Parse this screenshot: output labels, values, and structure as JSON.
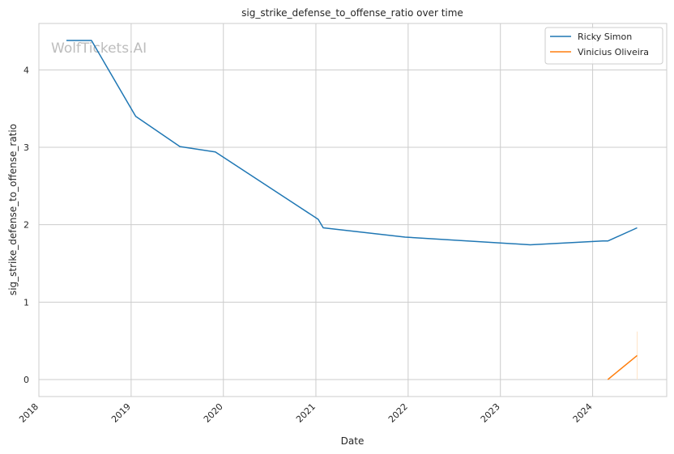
{
  "chart_data": {
    "type": "line",
    "title": "sig_strike_defense_to_offense_ratio over time",
    "xlabel": "Date",
    "ylabel": "sig_strike_defense_to_offense_ratio",
    "watermark": "WolfTickets.AI",
    "grid": true,
    "legend_position": "top-right",
    "x_ticks": [
      "2018",
      "2019",
      "2020",
      "2021",
      "2022",
      "2023",
      "2024"
    ],
    "y_ticks": [
      "0",
      "1",
      "2",
      "3",
      "4"
    ],
    "xlim": [
      "2018-01-01",
      "2024-10-20"
    ],
    "ylim": [
      -0.22,
      4.6
    ],
    "series": [
      {
        "name": "Ricky Simon",
        "color": "#1f77b4",
        "points": [
          [
            "2018-04-20",
            4.38
          ],
          [
            "2018-07-28",
            4.38
          ],
          [
            "2019-01-19",
            3.4
          ],
          [
            "2019-07-13",
            3.01
          ],
          [
            "2019-11-30",
            2.94
          ],
          [
            "2021-01-10",
            2.07
          ],
          [
            "2021-01-30",
            1.96
          ],
          [
            "2021-12-20",
            1.84
          ],
          [
            "2023-04-29",
            1.74
          ],
          [
            "2024-02-10",
            1.79
          ],
          [
            "2024-03-01",
            1.79
          ],
          [
            "2024-06-25",
            1.96
          ]
        ]
      },
      {
        "name": "Vinicius Oliveira",
        "color": "#ff7f0e",
        "points": [
          [
            "2024-03-01",
            0.0
          ],
          [
            "2024-06-25",
            0.31
          ]
        ]
      }
    ],
    "annotation_tail": {
      "date": "2024-06-25",
      "y_top": 0.62,
      "color": "#ffe4c8"
    }
  }
}
